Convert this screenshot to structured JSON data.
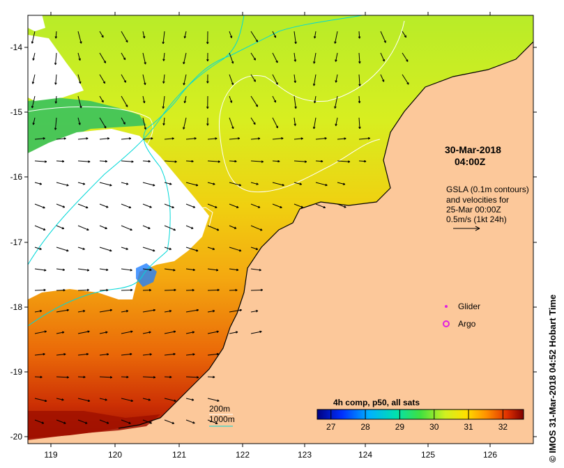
{
  "map": {
    "x_ticks": [
      "119",
      "120",
      "121",
      "122",
      "123",
      "124",
      "125",
      "126"
    ],
    "y_ticks": [
      "-14",
      "-15",
      "-16",
      "-17",
      "-18",
      "-19",
      "-20"
    ],
    "date_line1": "30-Mar-2018",
    "date_line2": "04:00Z",
    "gsla_lines": [
      "GSLA (0.1m contours)",
      "and velocities for",
      "25-Mar 00:00Z",
      "0.5m/s (1kt 24h)"
    ],
    "legend": {
      "glider_label": "Glider",
      "argo_label": "Argo",
      "glider_color": "#e020e0",
      "argo_color": "#e020e0"
    },
    "contour_legend": {
      "label_200m": "200m",
      "label_1000m": "1000m",
      "color_1000m": "#00d8d8"
    },
    "colorbar": {
      "title": "4h comp, p50, all sats",
      "ticks": [
        "27",
        "28",
        "29",
        "30",
        "31",
        "32"
      ],
      "range": [
        26.6,
        32.6
      ]
    },
    "side_label": "© IMOS 31-Mar-2018 04:52 Hobart Time",
    "colors": {
      "land": "#fcc89a",
      "coast": "#000000",
      "cyan_contour": "#00d8d8",
      "white_contour": "#ffffff"
    }
  }
}
